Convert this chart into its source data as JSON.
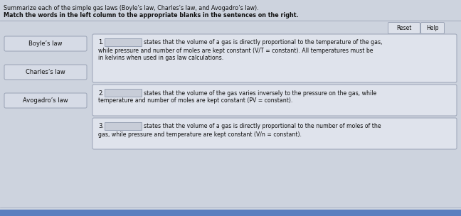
{
  "title_line1": "Summarize each of the simple gas laws (Boyle’s law, Charles’s law, and Avogadro’s law).",
  "title_line2": "Match the words in the left column to the appropriate blanks in the sentences on the right.",
  "bg_color": "#cdd3de",
  "left_labels": [
    "Boyle’s law",
    "Charles’s law",
    "Avogadro’s law"
  ],
  "left_box_bg": "#d6dbe6",
  "left_box_edge": "#9aa3b5",
  "right_box_bg": "#dfe3ec",
  "right_box_edge": "#9aa3b5",
  "blank_box_bg": "#c8cdd8",
  "blank_box_edge": "#9aa3b5",
  "button_bg": "#dde1ea",
  "button_edge": "#9aa3b5",
  "text_color": "#111111",
  "reset_label": "Reset",
  "help_label": "Help",
  "footer_color": "#5b7fbf",
  "separator_color": "#9aa3b5",
  "right_lines": [
    {
      "number": "1.",
      "line1": "states that the volume of a gas is directly proportional to the temperature of the gas,",
      "line2": "while pressure and number of moles are kept constant (V/T = constant). All temperatures must be",
      "line3": "in kelvins when used in gas law calculations.",
      "line4": ""
    },
    {
      "number": "2.",
      "line1": "states that the volume of the gas varies inversely to the pressure on the gas, while",
      "line2": "temperature and number of moles are kept constant (PV = constant).",
      "line3": "",
      "line4": ""
    },
    {
      "number": "3.",
      "line1": "states that the volume of a gas is directly proportional to the number of moles of the",
      "line2": "gas, while pressure and temperature are kept constant (V/n = constant).",
      "line3": "",
      "line4": ""
    }
  ]
}
